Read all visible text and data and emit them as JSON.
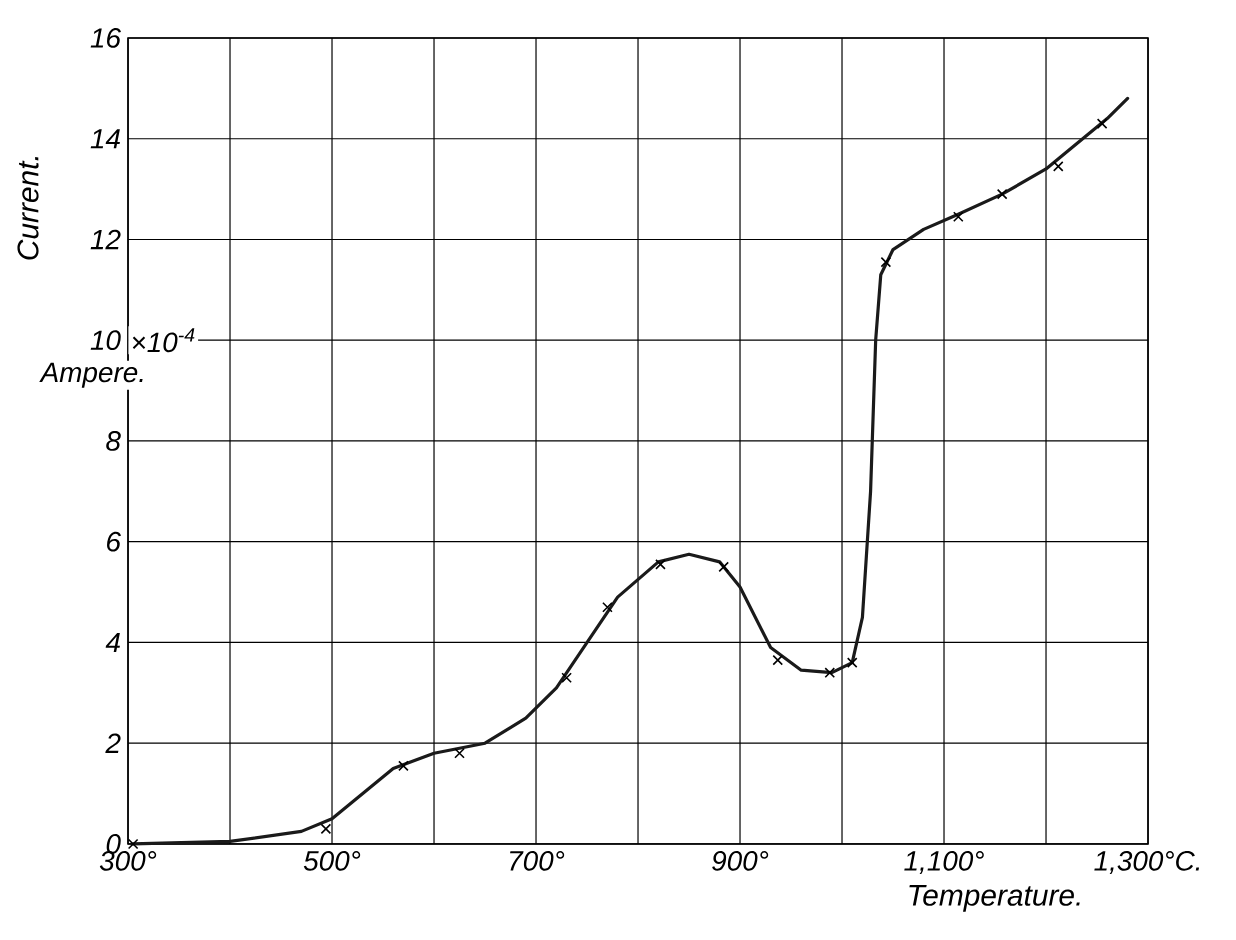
{
  "chart_data": {
    "type": "line",
    "ylabel": "Current.",
    "xlabel": "Temperature.",
    "annotations": [
      "×10$^{-4}$",
      "Ampere."
    ],
    "xlim": [
      300,
      1300
    ],
    "ylim": [
      0,
      16
    ],
    "xticks": [
      {
        "value": 300,
        "label": "300°"
      },
      {
        "value": 400,
        "label": null
      },
      {
        "value": 500,
        "label": "500°"
      },
      {
        "value": 600,
        "label": null
      },
      {
        "value": 700,
        "label": "700°"
      },
      {
        "value": 800,
        "label": null
      },
      {
        "value": 900,
        "label": "900°"
      },
      {
        "value": 1000,
        "label": null
      },
      {
        "value": 1100,
        "label": "1,100°"
      },
      {
        "value": 1200,
        "label": null
      },
      {
        "value": 1300,
        "label": "1,300°C."
      }
    ],
    "yticks": [
      0,
      2,
      4,
      6,
      8,
      10,
      12,
      14,
      16
    ],
    "grid": true,
    "line_style": "solid",
    "series": [
      {
        "color": "#1a1a1a",
        "marker": "none",
        "x": [
          305,
          400,
          470,
          500,
          530,
          560,
          600,
          650,
          690,
          720,
          750,
          780,
          820,
          850,
          880,
          900,
          930,
          960,
          990,
          1010,
          1020,
          1028,
          1033,
          1038,
          1050,
          1080,
          1114,
          1157,
          1200,
          1260,
          1280
        ],
        "values": [
          0,
          0.05,
          0.25,
          0.5,
          1.0,
          1.5,
          1.8,
          2.0,
          2.5,
          3.1,
          4.0,
          4.9,
          5.6,
          5.75,
          5.6,
          5.1,
          3.9,
          3.45,
          3.4,
          3.6,
          4.5,
          7,
          10,
          11.3,
          11.8,
          12.2,
          12.5,
          12.9,
          13.4,
          14.4,
          14.8
        ]
      },
      {
        "type": "scatter",
        "color": "#000000",
        "marker": "cross",
        "x": [
          305,
          494,
          570,
          625,
          730,
          770,
          822,
          884,
          937,
          988,
          1010,
          1043,
          1114,
          1157,
          1212,
          1255
        ],
        "values": [
          0,
          0.3,
          1.55,
          1.8,
          3.3,
          4.7,
          5.55,
          5.5,
          3.65,
          3.4,
          3.6,
          11.55,
          12.45,
          12.9,
          13.45,
          14.3
        ]
      }
    ]
  }
}
